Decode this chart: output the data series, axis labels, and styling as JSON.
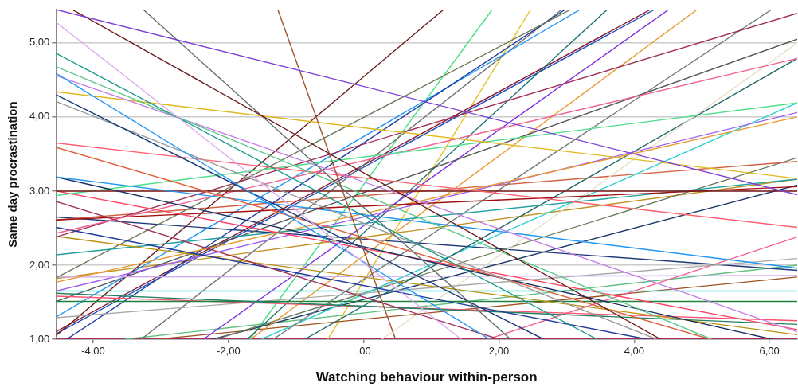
{
  "chart_data": {
    "type": "line",
    "xlabel": "Watching behaviour within-person",
    "ylabel": "Same day procrastination",
    "xlim": [
      -4.55,
      6.41
    ],
    "ylim": [
      1,
      5.45
    ],
    "xticks": [
      {
        "value": -4,
        "label": "-4,00"
      },
      {
        "value": -2,
        "label": "-2,00"
      },
      {
        "value": 0,
        "label": ",00"
      },
      {
        "value": 2,
        "label": "2,00"
      },
      {
        "value": 4,
        "label": "4,00"
      },
      {
        "value": 6,
        "label": "6,00"
      }
    ],
    "yticks": [
      {
        "value": 1,
        "label": "1,00"
      },
      {
        "value": 2,
        "label": "2,00"
      },
      {
        "value": 3,
        "label": "3,00"
      },
      {
        "value": 4,
        "label": "4,00"
      },
      {
        "value": 5,
        "label": "5,00"
      }
    ],
    "grid": "y",
    "legend": false,
    "marker": "none",
    "line_style": "solid",
    "series": [
      {
        "color": "#7b3fd6",
        "x": [
          -4.55,
          6.41
        ],
        "values": [
          5.45,
          2.95
        ]
      },
      {
        "color": "#6b1a1a",
        "x": [
          -4.31,
          4.39
        ],
        "values": [
          5.45,
          1.0
        ]
      },
      {
        "color": "#5f6b6b",
        "x": [
          -3.26,
          2.17
        ],
        "values": [
          5.45,
          1.0
        ]
      },
      {
        "color": "#a0522d",
        "x": [
          -1.27,
          0.47
        ],
        "values": [
          5.45,
          1.0
        ]
      },
      {
        "color": "#dcaef0",
        "x": [
          -4.55,
          1.44
        ],
        "values": [
          5.28,
          1.0
        ]
      },
      {
        "color": "#1a9a8a",
        "x": [
          -4.55,
          3.45
        ],
        "values": [
          4.86,
          1.0
        ]
      },
      {
        "color": "#5cc98a",
        "x": [
          -4.55,
          5.14
        ],
        "values": [
          4.68,
          1.0
        ]
      },
      {
        "color": "#2196f3",
        "x": [
          -4.55,
          1.86
        ],
        "values": [
          4.59,
          1.0
        ]
      },
      {
        "color": "#c77de8",
        "x": [
          -4.55,
          6.41
        ],
        "values": [
          4.56,
          1.1
        ]
      },
      {
        "color": "#e0b820",
        "x": [
          -4.55,
          6.41
        ],
        "values": [
          4.34,
          3.17
        ]
      },
      {
        "color": "#1f3a7a",
        "x": [
          -4.55,
          2.66
        ],
        "values": [
          4.3,
          1.0
        ]
      },
      {
        "color": "#999999",
        "x": [
          -4.55,
          4.33
        ],
        "values": [
          4.21,
          1.0
        ]
      },
      {
        "color": "#ff6070",
        "x": [
          -4.55,
          6.41
        ],
        "values": [
          3.65,
          2.51
        ]
      },
      {
        "color": "#e0603a",
        "x": [
          -4.55,
          5.12
        ],
        "values": [
          3.59,
          1.0
        ]
      },
      {
        "color": "#2196f3",
        "x": [
          -4.55,
          6.41
        ],
        "values": [
          3.19,
          1.96
        ]
      },
      {
        "color": "#1a3060",
        "x": [
          -4.55,
          6.03
        ],
        "values": [
          3.19,
          1.0
        ]
      },
      {
        "color": "#7a1a1a",
        "x": [
          -4.55,
          6.41
        ],
        "values": [
          3.0,
          3.0
        ]
      },
      {
        "color": "#4de08a",
        "x": [
          -4.55,
          6.41
        ],
        "values": [
          2.94,
          4.19
        ]
      },
      {
        "color": "#ff4060",
        "x": [
          -4.55,
          6.41
        ],
        "values": [
          3.0,
          1.13
        ]
      },
      {
        "color": "#a0305a",
        "x": [
          -4.55,
          2.0
        ],
        "values": [
          2.86,
          1.0
        ]
      },
      {
        "color": "#f06090",
        "x": [
          -4.55,
          6.41
        ],
        "values": [
          2.43,
          4.79
        ]
      },
      {
        "color": "#a01010",
        "x": [
          -4.55,
          6.41
        ],
        "values": [
          2.61,
          3.06
        ]
      },
      {
        "color": "#1f3a9a",
        "x": [
          -4.55,
          4.19
        ],
        "values": [
          2.51,
          1.0
        ]
      },
      {
        "color": "#a0305a",
        "x": [
          -4.55,
          6.41
        ],
        "values": [
          2.38,
          5.4
        ]
      },
      {
        "color": "#b8900a",
        "x": [
          -4.55,
          6.41
        ],
        "values": [
          2.39,
          1.06
        ]
      },
      {
        "color": "#20a0a0",
        "x": [
          -4.55,
          6.41
        ],
        "values": [
          2.14,
          3.16
        ]
      },
      {
        "color": "#6b7b5a",
        "x": [
          -4.55,
          3.06
        ],
        "values": [
          1.83,
          5.45
        ]
      },
      {
        "color": "#e89a30",
        "x": [
          -4.55,
          6.41
        ],
        "values": [
          1.77,
          4.0
        ]
      },
      {
        "color": "#d0a8f0",
        "x": [
          -4.55,
          6.41
        ],
        "values": [
          1.84,
          1.86
        ]
      },
      {
        "color": "#a060f0",
        "x": [
          -4.55,
          6.41
        ],
        "values": [
          1.65,
          4.06
        ]
      },
      {
        "color": "#40d8d8",
        "x": [
          -4.55,
          6.41
        ],
        "values": [
          1.65,
          1.65
        ]
      },
      {
        "color": "#208060",
        "x": [
          -4.55,
          6.41
        ],
        "values": [
          1.62,
          1.2
        ]
      },
      {
        "color": "#208040",
        "x": [
          -4.55,
          6.41
        ],
        "values": [
          1.51,
          1.51
        ]
      },
      {
        "color": "#ff5070",
        "x": [
          -4.55,
          6.41
        ],
        "values": [
          1.58,
          1.25
        ]
      },
      {
        "color": "#aaaaaa",
        "x": [
          -4.55,
          6.41
        ],
        "values": [
          1.29,
          2.09
        ]
      },
      {
        "color": "#6b1a1a",
        "x": [
          -4.55,
          1.18
        ],
        "values": [
          1.05,
          5.45
        ]
      },
      {
        "color": "#1f3aa0",
        "x": [
          -4.39,
          2.98
        ],
        "values": [
          1.0,
          5.45
        ]
      },
      {
        "color": "#2196f3",
        "x": [
          -4.55,
          3.2
        ],
        "values": [
          1.3,
          5.45
        ]
      },
      {
        "color": "#555555",
        "x": [
          -4.55,
          6.41
        ],
        "values": [
          1.51,
          5.05
        ]
      },
      {
        "color": "#707070",
        "x": [
          -3.29,
          2.93
        ],
        "values": [
          1.0,
          5.45
        ]
      },
      {
        "color": "#8030e0",
        "x": [
          -2.37,
          4.51
        ],
        "values": [
          1.0,
          5.45
        ]
      },
      {
        "color": "#e89a30",
        "x": [
          -1.67,
          4.93
        ],
        "values": [
          1.0,
          5.45
        ]
      },
      {
        "color": "#207070",
        "x": [
          -1.72,
          3.6
        ],
        "values": [
          1.0,
          5.45
        ]
      },
      {
        "color": "#8b1a2a",
        "x": [
          -4.55,
          4.24
        ],
        "values": [
          1.1,
          5.45
        ]
      },
      {
        "color": "#1f50c0",
        "x": [
          -4.55,
          4.3
        ],
        "values": [
          1.07,
          5.45
        ]
      },
      {
        "color": "#707878",
        "x": [
          -1.34,
          6.03
        ],
        "values": [
          1.0,
          5.45
        ]
      },
      {
        "color": "#e8e0c8",
        "x": [
          0.27,
          6.41
        ],
        "values": [
          1.0,
          5.0
        ]
      },
      {
        "color": "#206868",
        "x": [
          -0.87,
          6.41
        ],
        "values": [
          1.0,
          4.79
        ]
      },
      {
        "color": "#30d0d0",
        "x": [
          -1.51,
          6.41
        ],
        "values": [
          1.0,
          4.19
        ]
      },
      {
        "color": "#d06040",
        "x": [
          -4.55,
          6.41
        ],
        "values": [
          2.61,
          3.4
        ]
      },
      {
        "color": "#6b7b5a",
        "x": [
          -2.18,
          6.41
        ],
        "values": [
          1.0,
          3.45
        ]
      },
      {
        "color": "#c09020",
        "x": [
          -4.55,
          6.41
        ],
        "values": [
          1.82,
          3.16
        ]
      },
      {
        "color": "#1f3a6a",
        "x": [
          -2.23,
          6.41
        ],
        "values": [
          1.0,
          3.08
        ]
      },
      {
        "color": "#1f3a7a",
        "x": [
          -4.55,
          6.41
        ],
        "values": [
          2.65,
          1.93
        ]
      },
      {
        "color": "#f06090",
        "x": [
          1.84,
          6.41
        ],
        "values": [
          1.0,
          2.38
        ]
      },
      {
        "color": "#60c080",
        "x": [
          -3.53,
          6.41
        ],
        "values": [
          1.0,
          2.0
        ]
      },
      {
        "color": "#a05020",
        "x": [
          -3.04,
          6.41
        ],
        "values": [
          1.0,
          1.84
        ]
      },
      {
        "color": "#3ee07a",
        "x": [
          -1.68,
          1.9
        ],
        "values": [
          1.0,
          5.45
        ]
      },
      {
        "color": "#e8c020",
        "x": [
          -0.53,
          2.47
        ],
        "values": [
          1.0,
          5.45
        ]
      },
      {
        "color": "#b01050",
        "x": [
          -4.55,
          6.41
        ],
        "values": [
          1.0,
          1.0
        ]
      }
    ]
  }
}
